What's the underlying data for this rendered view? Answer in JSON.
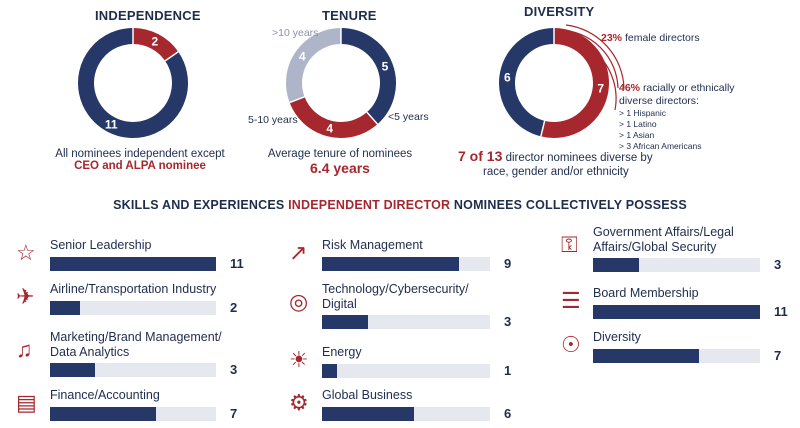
{
  "colors": {
    "navy": "#253867",
    "red": "#a6272d",
    "light": "#aeb5c8",
    "track": "#e6e8ef"
  },
  "chart_data": [
    {
      "type": "pie",
      "title": "INDEPENDENCE",
      "segments": [
        {
          "label": "",
          "value": 2,
          "color": "#a6272d"
        },
        {
          "label": "",
          "value": 11,
          "color": "#253867"
        }
      ],
      "caption_line1": "All nominees independent except",
      "caption_line2": "CEO and ALPA nominee"
    },
    {
      "type": "pie",
      "title": "TENURE",
      "segments": [
        {
          "label": ">10 years",
          "value": 4,
          "color": "#aeb5c8"
        },
        {
          "label": "<5 years",
          "value": 5,
          "color": "#253867"
        },
        {
          "label": "5-10 years",
          "value": 4,
          "color": "#a6272d"
        }
      ],
      "caption_line1": "Average tenure of nominees",
      "caption_value": "6.4 years"
    },
    {
      "type": "pie",
      "title": "DIVERSITY",
      "segments": [
        {
          "label": "",
          "value": 7,
          "color": "#a6272d"
        },
        {
          "label": "",
          "value": 6,
          "color": "#253867"
        }
      ],
      "female_pct": "23%",
      "female_text": "female directors",
      "racial_pct": "46%",
      "racial_text1": "racially or ethnically",
      "racial_text2": "diverse directors:",
      "racial_list": [
        "> 1 Hispanic",
        "> 1 Latino",
        "> 1 Asian",
        "> 3 African Americans"
      ],
      "summary_bold": "7 of 13",
      "summary_text1": "director nominees diverse by",
      "summary_text2": "race, gender and/or ethnicity"
    },
    {
      "type": "bar",
      "title_part1": "SKILLS AND EXPERIENCES ",
      "title_part2": "INDEPENDENT DIRECTOR",
      "title_part3": " NOMINEES COLLECTIVELY POSSESS",
      "max": 11,
      "skills": [
        {
          "line1": "Senior Leadership",
          "line2": "",
          "value": 11,
          "icon": "award-icon"
        },
        {
          "line1": "Airline/Transportation Industry",
          "line2": "",
          "value": 2,
          "icon": "airplane-icon"
        },
        {
          "line1": "Marketing/Brand Management/",
          "line2": "Data Analytics",
          "value": 3,
          "icon": "megaphone-icon"
        },
        {
          "line1": "Finance/Accounting",
          "line2": "",
          "value": 7,
          "icon": "briefcase-icon"
        },
        {
          "line1": "Risk Management",
          "line2": "",
          "value": 9,
          "icon": "risk-chart-icon"
        },
        {
          "line1": "Technology/Cybersecurity/",
          "line2": "Digital",
          "value": 3,
          "icon": "fingerprint-icon"
        },
        {
          "line1": "Energy",
          "line2": "",
          "value": 1,
          "icon": "lightbulb-icon"
        },
        {
          "line1": "Global Business",
          "line2": "",
          "value": 6,
          "icon": "globe-gear-icon"
        },
        {
          "line1": "Government Affairs/Legal",
          "line2": "Affairs/Global Security",
          "value": 3,
          "icon": "padlock-icon"
        },
        {
          "line1": "Board Membership",
          "line2": "",
          "value": 11,
          "icon": "certificate-icon"
        },
        {
          "line1": "Diversity",
          "line2": "",
          "value": 7,
          "icon": "people-globe-icon"
        }
      ]
    }
  ]
}
